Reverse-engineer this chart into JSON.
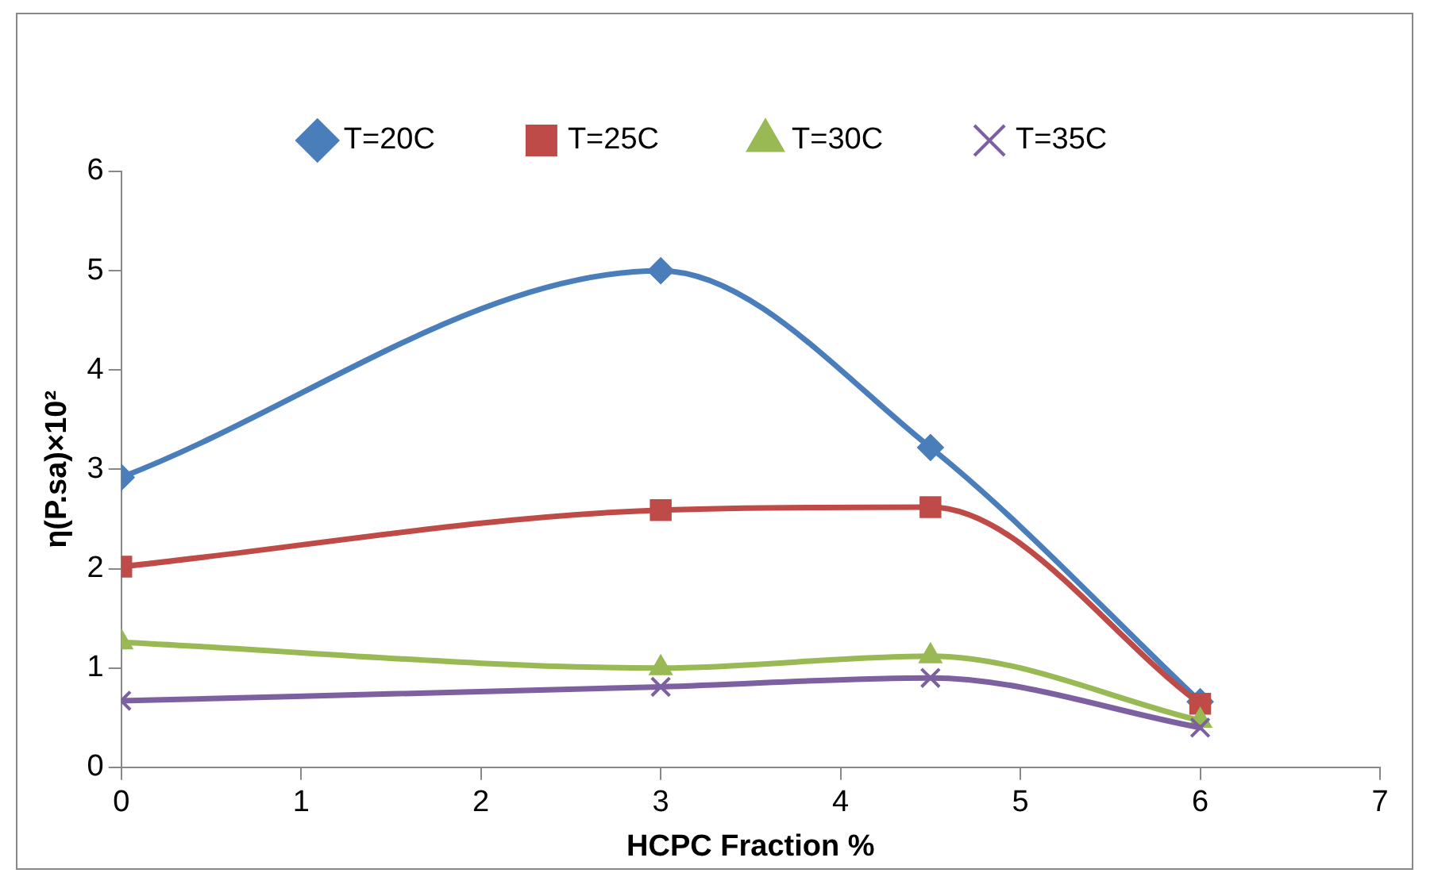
{
  "chart_data": {
    "type": "line",
    "xlabel": "HCPC Fraction %",
    "ylabel": "η(P.sa)×10²",
    "x": [
      0,
      3,
      4.5,
      6
    ],
    "xlim": [
      0,
      7
    ],
    "xticks": [
      0,
      1,
      2,
      3,
      4,
      5,
      6,
      7
    ],
    "ylim": [
      0,
      6
    ],
    "yticks": [
      0,
      1,
      2,
      3,
      4,
      5,
      6
    ],
    "grid": false,
    "legend": "top",
    "series": [
      {
        "name": "T=20C",
        "color": "#4a7ebb",
        "marker": "diamond",
        "values": [
          2.92,
          5.0,
          3.22,
          0.66
        ]
      },
      {
        "name": "T=25C",
        "color": "#be4b48",
        "marker": "square",
        "values": [
          2.02,
          2.59,
          2.62,
          0.64
        ]
      },
      {
        "name": "T=30C",
        "color": "#98b954",
        "marker": "triangle",
        "values": [
          1.26,
          1.0,
          1.12,
          0.47
        ]
      },
      {
        "name": "T=35C",
        "color": "#7d60a0",
        "marker": "cross",
        "values": [
          0.67,
          0.81,
          0.9,
          0.4
        ]
      }
    ]
  }
}
